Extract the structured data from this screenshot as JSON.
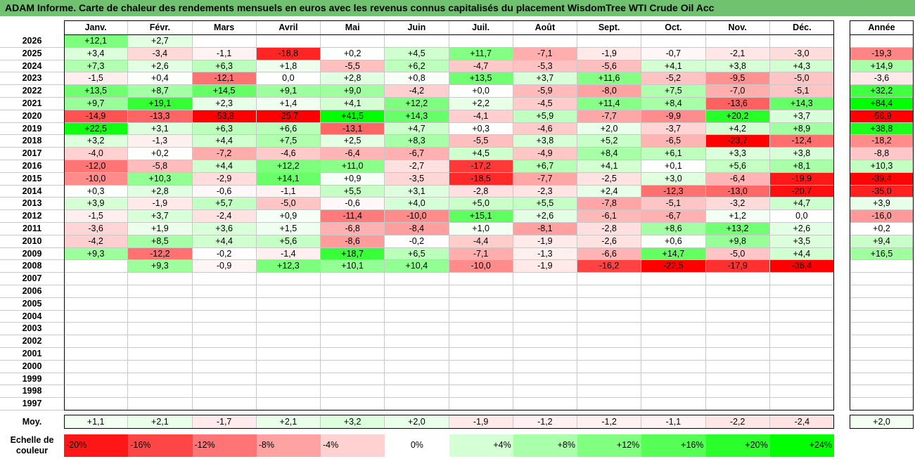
{
  "title": "ADAM Informe. Carte de chaleur des rendements mensuels en euros avec les revenus connus capitalisés du placement WisdomTree WTI Crude Oil Acc",
  "chart_data": {
    "type": "heatmap",
    "months": [
      "Janv.",
      "Févr.",
      "Mars",
      "Avril",
      "Mai",
      "Juin",
      "Juil.",
      "Août",
      "Sept.",
      "Oct.",
      "Nov.",
      "Déc."
    ],
    "year_header": "Année",
    "rows": [
      {
        "year": "2026",
        "months": [
          "+12,1",
          "+2,7",
          "",
          "",
          "",
          "",
          "",
          "",
          "",
          "",
          "",
          ""
        ],
        "annual": ""
      },
      {
        "year": "2025",
        "months": [
          "+3,4",
          "-3,4",
          "-1,1",
          "-18,8",
          "+0,2",
          "+4,5",
          "+11,7",
          "-7,1",
          "-1,9",
          "-0,7",
          "-2,1",
          "-3,0"
        ],
        "annual": "-19,3"
      },
      {
        "year": "2024",
        "months": [
          "+7,3",
          "+2,6",
          "+6,3",
          "+1,8",
          "-5,5",
          "+6,2",
          "-4,7",
          "-5,3",
          "-5,6",
          "+4,1",
          "+3,8",
          "+4,3"
        ],
        "annual": "+14,9"
      },
      {
        "year": "2023",
        "months": [
          "-1,5",
          "+0,4",
          "-12,1",
          "0,0",
          "+2,8",
          "+0,8",
          "+13,5",
          "+3,7",
          "+11,6",
          "-5,2",
          "-9,5",
          "-5,0"
        ],
        "annual": "-3,6"
      },
      {
        "year": "2022",
        "months": [
          "+13,5",
          "+8,7",
          "+14,5",
          "+9,1",
          "+9,0",
          "-4,2",
          "+0,0",
          "-5,9",
          "-8,0",
          "+7,5",
          "-7,0",
          "-5,1"
        ],
        "annual": "+32,2"
      },
      {
        "year": "2021",
        "months": [
          "+9,7",
          "+19,1",
          "+2,3",
          "+1,4",
          "+4,1",
          "+12,2",
          "+2,2",
          "-4,5",
          "+11,4",
          "+8,4",
          "-13,6",
          "+14,3"
        ],
        "annual": "+84,4"
      },
      {
        "year": "2020",
        "months": [
          "-14,9",
          "-13,3",
          "-53,8",
          "-25,7",
          "+41,5",
          "+14,3",
          "-4,1",
          "+5,9",
          "-7,7",
          "-9,9",
          "+20,2",
          "+3,7"
        ],
        "annual": "-56,9"
      },
      {
        "year": "2019",
        "months": [
          "+22,5",
          "+3,1",
          "+6,3",
          "+6,6",
          "-13,1",
          "+4,7",
          "+0,3",
          "-4,6",
          "+2,0",
          "-3,7",
          "+4,2",
          "+8,9"
        ],
        "annual": "+38,8"
      },
      {
        "year": "2018",
        "months": [
          "+3,2",
          "-1,3",
          "+4,4",
          "+7,5",
          "+2,5",
          "+8,3",
          "-5,5",
          "+3,8",
          "+5,2",
          "-6,5",
          "-23,7",
          "-12,4"
        ],
        "annual": "-18,2"
      },
      {
        "year": "2017",
        "months": [
          "-4,0",
          "+0,2",
          "-7,2",
          "-4,6",
          "-6,4",
          "-6,7",
          "+4,5",
          "-4,9",
          "+8,4",
          "+6,1",
          "+3,3",
          "+3,8"
        ],
        "annual": "-8,8"
      },
      {
        "year": "2016",
        "months": [
          "-12,0",
          "-5,8",
          "+4,4",
          "+12,2",
          "+11,0",
          "-2,7",
          "-17,2",
          "+6,7",
          "+4,1",
          "+0,1",
          "+5,6",
          "+8,1"
        ],
        "annual": "+10,3"
      },
      {
        "year": "2015",
        "months": [
          "-10,0",
          "+10,3",
          "-2,9",
          "+14,1",
          "+0,9",
          "-3,5",
          "-18,5",
          "-7,7",
          "-2,5",
          "+3,0",
          "-6,4",
          "-19,9"
        ],
        "annual": "-39,4"
      },
      {
        "year": "2014",
        "months": [
          "+0,3",
          "+2,8",
          "-0,6",
          "-1,1",
          "+5,5",
          "+3,1",
          "-2,8",
          "-2,3",
          "+2,4",
          "-12,3",
          "-13,0",
          "-20,7"
        ],
        "annual": "-35,0"
      },
      {
        "year": "2013",
        "months": [
          "+3,9",
          "-1,9",
          "+5,7",
          "-5,0",
          "-0,6",
          "+4,0",
          "+5,0",
          "+5,5",
          "-7,8",
          "-5,1",
          "-3,2",
          "+4,7"
        ],
        "annual": "+3,9"
      },
      {
        "year": "2012",
        "months": [
          "-1,5",
          "+3,7",
          "-2,4",
          "+0,9",
          "-11,4",
          "-10,0",
          "+15,1",
          "+2,6",
          "-6,1",
          "-6,7",
          "+1,2",
          "0,0"
        ],
        "annual": "-16,0"
      },
      {
        "year": "2011",
        "months": [
          "-3,6",
          "+1,9",
          "+3,6",
          "+1,5",
          "-6,8",
          "-8,4",
          "+1,0",
          "-8,1",
          "-2,8",
          "+8,6",
          "+13,2",
          "+2,6"
        ],
        "annual": "+0,2"
      },
      {
        "year": "2010",
        "months": [
          "-4,2",
          "+8,5",
          "+4,4",
          "+5,6",
          "-8,6",
          "-0,2",
          "-4,4",
          "-1,9",
          "-2,6",
          "+0,6",
          "+9,8",
          "+3,5"
        ],
        "annual": "+9,4"
      },
      {
        "year": "2009",
        "months": [
          "+9,3",
          "-12,2",
          "-0,2",
          "-1,4",
          "+18,7",
          "+6,5",
          "-7,1",
          "-1,3",
          "-6,6",
          "+14,7",
          "-5,0",
          "+4,4"
        ],
        "annual": "+16,5"
      },
      {
        "year": "2008",
        "months": [
          "",
          "+9,3",
          "-0,9",
          "+12,3",
          "+10,1",
          "+10,4",
          "-10,0",
          "-1,9",
          "-16,2",
          "-22,5",
          "-17,9",
          "-36,4"
        ],
        "annual": ""
      },
      {
        "year": "2007",
        "months": [
          "",
          "",
          "",
          "",
          "",
          "",
          "",
          "",
          "",
          "",
          "",
          ""
        ],
        "annual": ""
      },
      {
        "year": "2006",
        "months": [
          "",
          "",
          "",
          "",
          "",
          "",
          "",
          "",
          "",
          "",
          "",
          ""
        ],
        "annual": ""
      },
      {
        "year": "2005",
        "months": [
          "",
          "",
          "",
          "",
          "",
          "",
          "",
          "",
          "",
          "",
          "",
          ""
        ],
        "annual": ""
      },
      {
        "year": "2004",
        "months": [
          "",
          "",
          "",
          "",
          "",
          "",
          "",
          "",
          "",
          "",
          "",
          ""
        ],
        "annual": ""
      },
      {
        "year": "2003",
        "months": [
          "",
          "",
          "",
          "",
          "",
          "",
          "",
          "",
          "",
          "",
          "",
          ""
        ],
        "annual": ""
      },
      {
        "year": "2002",
        "months": [
          "",
          "",
          "",
          "",
          "",
          "",
          "",
          "",
          "",
          "",
          "",
          ""
        ],
        "annual": ""
      },
      {
        "year": "2001",
        "months": [
          "",
          "",
          "",
          "",
          "",
          "",
          "",
          "",
          "",
          "",
          "",
          ""
        ],
        "annual": ""
      },
      {
        "year": "2000",
        "months": [
          "",
          "",
          "",
          "",
          "",
          "",
          "",
          "",
          "",
          "",
          "",
          ""
        ],
        "annual": ""
      },
      {
        "year": "1999",
        "months": [
          "",
          "",
          "",
          "",
          "",
          "",
          "",
          "",
          "",
          "",
          "",
          ""
        ],
        "annual": ""
      },
      {
        "year": "1998",
        "months": [
          "",
          "",
          "",
          "",
          "",
          "",
          "",
          "",
          "",
          "",
          "",
          ""
        ],
        "annual": ""
      },
      {
        "year": "1997",
        "months": [
          "",
          "",
          "",
          "",
          "",
          "",
          "",
          "",
          "",
          "",
          "",
          ""
        ],
        "annual": ""
      }
    ],
    "average": {
      "label": "Moy.",
      "months": [
        "+1,1",
        "+2,1",
        "-1,7",
        "+2,1",
        "+3,2",
        "+2,0",
        "-1,9",
        "-1,2",
        "-1,2",
        "-1,1",
        "-2,2",
        "-2,4"
      ],
      "annual": "+2,0"
    },
    "legend": {
      "label": "Echelle de couleur",
      "steps": [
        "-20%",
        "-16%",
        "-12%",
        "-8%",
        "-4%",
        "0%",
        "+4%",
        "+8%",
        "+12%",
        "+16%",
        "+20%",
        "+24%"
      ]
    },
    "colors": {
      "negative": "#ff0000",
      "zero": "#ffffff",
      "positive": "#00ff00",
      "title_bg": "#70c270"
    }
  }
}
